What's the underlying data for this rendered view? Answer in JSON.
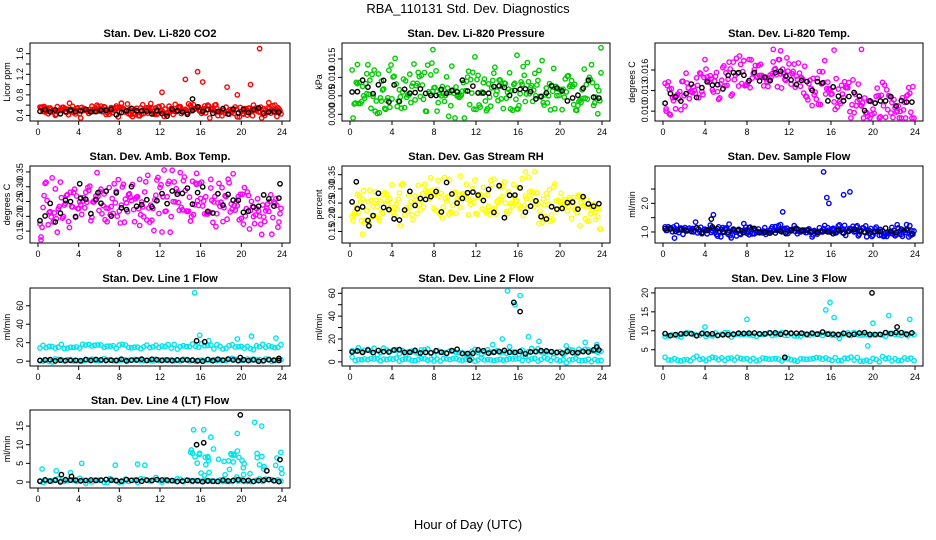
{
  "figure": {
    "title": "RBA_110131  Std. Dev. Diagnostics",
    "xlabel": "Hour of Day (UTC)",
    "x_ticks": [
      "0",
      "4",
      "8",
      "12",
      "16",
      "20",
      "24"
    ]
  },
  "chart_data": [
    {
      "type": "scatter",
      "title": "Stan. Dev. Li-820 CO2",
      "ylabel": "Licor ppm",
      "xlim": [
        0,
        24
      ],
      "ylim": [
        0.35,
        1.75
      ],
      "yticks": [
        0.4,
        0.6,
        0.8,
        1.0,
        1.2,
        1.4,
        1.6
      ],
      "ytick_labels": [
        "0.4",
        "",
        "0.8",
        "",
        "1.2",
        "",
        "1.6"
      ],
      "series": [
        {
          "name": "all",
          "color": "#ff0000",
          "base": 0.5,
          "noise": 0.06,
          "extras": [
            [
              14.5,
              1.1
            ],
            [
              15.7,
              1.25
            ],
            [
              16.2,
              1.05
            ],
            [
              18.6,
              0.95
            ],
            [
              20.9,
              1.0
            ],
            [
              21.8,
              1.7
            ],
            [
              23.5,
              0.38
            ],
            [
              12.2,
              0.85
            ],
            [
              19.6,
              0.8
            ]
          ]
        },
        {
          "name": "hourly",
          "color": "#000000",
          "base": 0.48,
          "noise": 0.04,
          "extras": [
            [
              15.2,
              0.72
            ]
          ]
        }
      ]
    },
    {
      "type": "scatter",
      "title": "Stan. Dev. Li-820 Pressure",
      "ylabel": "kPa",
      "xlim": [
        0,
        24
      ],
      "ylim": [
        -0.001,
        0.0185
      ],
      "yticks": [
        0.0,
        0.005,
        0.01,
        0.015
      ],
      "ytick_labels": [
        "0.000",
        "0.005",
        "0.010",
        "0.015"
      ],
      "series": [
        {
          "name": "all",
          "color": "#00cc00",
          "base": 0.0065,
          "noise": 0.0035,
          "extras": [
            [
              7.9,
              0.0175
            ],
            [
              15.9,
              0.016
            ],
            [
              23.9,
              0.018
            ],
            [
              0.7,
              0.0135
            ],
            [
              1.6,
              0.011
            ],
            [
              3.0,
              0.009
            ]
          ]
        },
        {
          "name": "hourly",
          "color": "#000000",
          "base": 0.0062,
          "noise": 0.0014,
          "extras": []
        }
      ]
    },
    {
      "type": "scatter",
      "title": "Stan. Dev. Li-820 Temp.",
      "ylabel": "degrees C",
      "xlim": [
        0,
        24
      ],
      "ylim": [
        0.009,
        0.0195
      ],
      "yticks": [
        0.01,
        0.013,
        0.016
      ],
      "ytick_labels": [
        "0.010",
        "0.013",
        "0.016"
      ],
      "series": [
        {
          "name": "all",
          "color": "#ff00ff",
          "base": 0.0135,
          "noise": 0.0016,
          "trend": "temp",
          "extras": [
            [
              0.3,
              0.01
            ],
            [
              0.6,
              0.0096
            ],
            [
              10.5,
              0.019
            ],
            [
              16.3,
              0.0189
            ],
            [
              18.9,
              0.019
            ],
            [
              11.2,
              0.0188
            ]
          ]
        },
        {
          "name": "hourly",
          "color": "#000000",
          "base": 0.0135,
          "noise": 0.0008,
          "trend": "temp",
          "extras": []
        }
      ]
    },
    {
      "type": "scatter",
      "title": "Stan. Dev. Amb. Box Temp.",
      "ylabel": "degrees C",
      "xlim": [
        0,
        24
      ],
      "ylim": [
        0.12,
        0.36
      ],
      "yticks": [
        0.15,
        0.2,
        0.25,
        0.3,
        0.35
      ],
      "ytick_labels": [
        "0.15",
        "0.20",
        "0.25",
        "0.30",
        "0.35"
      ],
      "series": [
        {
          "name": "all",
          "color": "#ff00ff",
          "base": 0.23,
          "noise": 0.045,
          "trend": "box",
          "extras": [
            [
              15.6,
              0.345
            ],
            [
              17.0,
              0.325
            ],
            [
              0.3,
              0.13
            ],
            [
              10.0,
              0.325
            ]
          ]
        },
        {
          "name": "hourly",
          "color": "#000000",
          "base": 0.23,
          "noise": 0.03,
          "trend": "box",
          "extras": [
            [
              4.1,
              0.31
            ],
            [
              23.8,
              0.31
            ],
            [
              5.9,
              0.28
            ]
          ]
        }
      ]
    },
    {
      "type": "scatter",
      "title": "Stan. Dev. Gas Stream RH",
      "ylabel": "percent",
      "xlim": [
        0,
        24
      ],
      "ylim": [
        0.12,
        0.37
      ],
      "yticks": [
        0.15,
        0.2,
        0.25,
        0.3,
        0.35
      ],
      "ytick_labels": [
        "0.15",
        "0.20",
        "0.25",
        "0.30",
        "0.35"
      ],
      "series": [
        {
          "name": "all",
          "color": "#ffff00",
          "base": 0.245,
          "noise": 0.04,
          "trend": "rh",
          "extras": [
            [
              16.7,
              0.36
            ],
            [
              1.2,
              0.14
            ],
            [
              10.5,
              0.345
            ]
          ]
        },
        {
          "name": "hourly",
          "color": "#000000",
          "base": 0.245,
          "noise": 0.03,
          "trend": "rh",
          "extras": [
            [
              0.6,
              0.325
            ],
            [
              1.8,
              0.17
            ]
          ]
        }
      ]
    },
    {
      "type": "scatter",
      "title": "Stan. Dev. Sample Flow",
      "ylabel": "ml/min",
      "xlim": [
        0,
        24
      ],
      "ylim": [
        0.72,
        3.2
      ],
      "yticks": [
        1.0,
        1.5,
        2.0,
        2.5
      ],
      "ytick_labels": [
        "1.0",
        "",
        "2.0",
        ""
      ],
      "series": [
        {
          "name": "all",
          "color": "#0000ff",
          "base": 1.05,
          "noise": 0.1,
          "extras": [
            [
              15.3,
              3.1
            ],
            [
              17.2,
              2.3
            ],
            [
              17.8,
              2.4
            ],
            [
              15.8,
              2.0
            ],
            [
              15.6,
              2.2
            ],
            [
              4.8,
              1.6
            ],
            [
              11.4,
              1.7
            ]
          ]
        },
        {
          "name": "hourly",
          "color": "#000000",
          "base": 1.05,
          "noise": 0.06,
          "extras": [
            [
              4.6,
              1.45
            ]
          ]
        }
      ]
    },
    {
      "type": "scatter",
      "title": "Stan. Dev. Line 1 Flow",
      "ylabel": "ml/min",
      "xlim": [
        0,
        24
      ],
      "ylim": [
        -2,
        76
      ],
      "yticks": [
        0,
        20,
        40,
        60
      ],
      "ytick_labels": [
        "0",
        "20",
        "40",
        "60"
      ],
      "series": [
        {
          "name": "all",
          "color": "#00e5ee",
          "bands": [
            [
              16,
              1.5
            ],
            [
              1,
              0.8
            ]
          ],
          "extras": [
            [
              15.4,
              74
            ],
            [
              15.9,
              28
            ],
            [
              16.8,
              22
            ],
            [
              19.6,
              24
            ],
            [
              23.4,
              25
            ],
            [
              21.0,
              27
            ]
          ]
        },
        {
          "name": "hourly",
          "color": "#000000",
          "bands": [
            [
              1,
              0.6
            ]
          ],
          "extras": [
            [
              15.6,
              22
            ],
            [
              16.4,
              21
            ],
            [
              19.9,
              4
            ],
            [
              23.7,
              3
            ]
          ]
        }
      ]
    },
    {
      "type": "scatter",
      "title": "Stan. Dev. Line 2 Flow",
      "ylabel": "ml/min",
      "xlim": [
        0,
        24
      ],
      "ylim": [
        -1,
        62
      ],
      "yticks": [
        0,
        10,
        20,
        30,
        40,
        50,
        60
      ],
      "ytick_labels": [
        "0",
        "",
        "20",
        "",
        "40",
        "",
        "60"
      ],
      "series": [
        {
          "name": "all",
          "color": "#00e5ee",
          "bands": [
            [
              9,
              1.5
            ],
            [
              2,
              1
            ]
          ],
          "extras": [
            [
              15.0,
              62
            ],
            [
              16.2,
              58
            ],
            [
              15.7,
              50
            ],
            [
              14.5,
              20
            ],
            [
              17.0,
              22
            ],
            [
              18.0,
              18
            ],
            [
              13.6,
              15
            ],
            [
              23.5,
              15
            ],
            [
              20.6,
              14
            ],
            [
              22.4,
              17
            ]
          ]
        },
        {
          "name": "hourly",
          "color": "#000000",
          "bands": [
            [
              9,
              1
            ]
          ],
          "extras": [
            [
              15.6,
              52
            ],
            [
              16.2,
              44
            ],
            [
              11.4,
              1.5
            ],
            [
              23.5,
              13
            ]
          ]
        }
      ]
    },
    {
      "type": "scatter",
      "title": "Stan. Dev. Line 3 Flow",
      "ylabel": "ml/min",
      "xlim": [
        0,
        24
      ],
      "ylim": [
        1.5,
        20.5
      ],
      "yticks": [
        5,
        10,
        15,
        20
      ],
      "ytick_labels": [
        "5",
        "10",
        "15",
        "20"
      ],
      "series": [
        {
          "name": "all",
          "color": "#00e5ee",
          "bands": [
            [
              9,
              0.3
            ],
            [
              2.5,
              0.35
            ]
          ],
          "extras": [
            [
              15.5,
              15.5
            ],
            [
              15.9,
              17.5
            ],
            [
              16.3,
              13.5
            ],
            [
              8.0,
              13
            ],
            [
              4.0,
              11
            ],
            [
              21.5,
              14
            ],
            [
              23.5,
              13
            ],
            [
              20.0,
              12
            ],
            [
              16.8,
              8
            ],
            [
              19.5,
              6
            ]
          ]
        },
        {
          "name": "hourly",
          "color": "#000000",
          "bands": [
            [
              9.2,
              0.25
            ]
          ],
          "extras": [
            [
              19.9,
              20
            ],
            [
              11.6,
              3
            ],
            [
              22.3,
              11
            ]
          ]
        }
      ]
    },
    {
      "type": "scatter",
      "title": "Stan. Dev. Line 4 (LT) Flow",
      "ylabel": "ml/min",
      "xlim": [
        0,
        24
      ],
      "ylim": [
        -0.8,
        18.5
      ],
      "yticks": [
        0,
        5,
        10,
        15
      ],
      "ytick_labels": [
        "0",
        "5",
        "10",
        "15"
      ],
      "series": [
        {
          "name": "all",
          "color": "#00e5ee",
          "bands": [
            [
              0.4,
              0.3
            ]
          ],
          "spread": [
            14.5,
            24,
            1,
            9
          ],
          "extras": [
            [
              15.3,
              14
            ],
            [
              16.3,
              14
            ],
            [
              19.6,
              13
            ],
            [
              21.3,
              16
            ],
            [
              22.0,
              15
            ],
            [
              17.0,
              12
            ],
            [
              0.4,
              3.5
            ],
            [
              1.8,
              3
            ],
            [
              4.3,
              5
            ],
            [
              7.6,
              4.5
            ],
            [
              9.8,
              4.8
            ],
            [
              10.5,
              4.5
            ],
            [
              3.2,
              2.5
            ]
          ]
        },
        {
          "name": "hourly",
          "color": "#000000",
          "bands": [
            [
              0.4,
              0.2
            ]
          ],
          "extras": [
            [
              19.9,
              18
            ],
            [
              15.6,
              10
            ],
            [
              16.3,
              10.5
            ],
            [
              23.8,
              6
            ],
            [
              22.5,
              3
            ],
            [
              2.3,
              2
            ],
            [
              3.3,
              1.5
            ]
          ]
        }
      ]
    }
  ]
}
